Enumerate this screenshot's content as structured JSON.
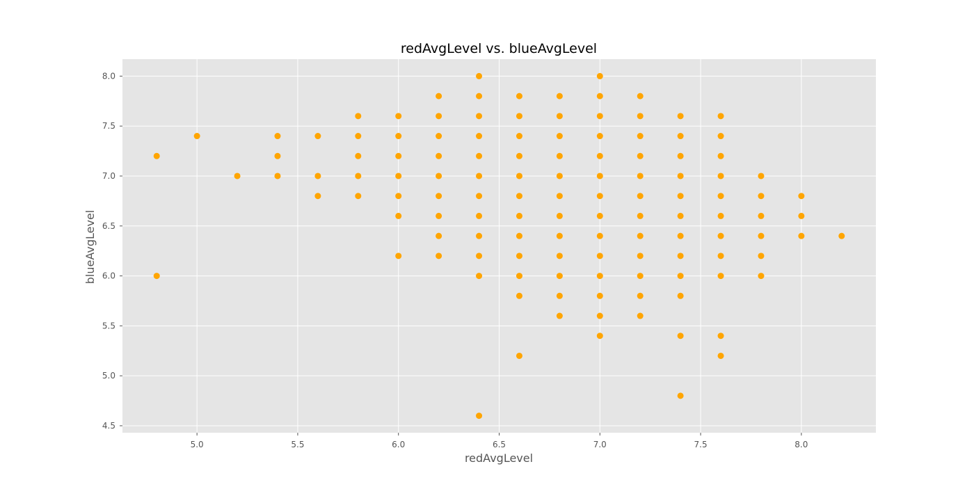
{
  "chart_data": {
    "type": "scatter",
    "title": "redAvgLevel vs. blueAvgLevel",
    "xlabel": "redAvgLevel",
    "ylabel": "blueAvgLevel",
    "xlim": [
      4.63,
      8.37
    ],
    "ylim": [
      4.43,
      8.17
    ],
    "xticks": [
      5.0,
      5.5,
      6.0,
      6.5,
      7.0,
      7.5,
      8.0
    ],
    "xtick_labels": [
      "5.0",
      "5.5",
      "6.0",
      "6.5",
      "7.0",
      "7.5",
      "8.0"
    ],
    "yticks": [
      4.5,
      5.0,
      5.5,
      6.0,
      6.5,
      7.0,
      7.5,
      8.0
    ],
    "ytick_labels": [
      "4.5",
      "5.0",
      "5.5",
      "6.0",
      "6.5",
      "7.0",
      "7.5",
      "8.0"
    ],
    "grid": true,
    "legend": false,
    "colors": {
      "marker": "#ffa500",
      "plot_background": "#e5e5e5",
      "grid": "#ffffff"
    },
    "points": [
      [
        4.8,
        7.2
      ],
      [
        4.8,
        6.0
      ],
      [
        5.0,
        7.4
      ],
      [
        5.2,
        7.0
      ],
      [
        5.4,
        7.4
      ],
      [
        5.4,
        7.2
      ],
      [
        5.4,
        7.0
      ],
      [
        5.6,
        7.4
      ],
      [
        5.6,
        7.0
      ],
      [
        5.6,
        6.8
      ],
      [
        5.8,
        7.6
      ],
      [
        5.8,
        7.4
      ],
      [
        5.8,
        7.2
      ],
      [
        5.8,
        7.0
      ],
      [
        5.8,
        6.8
      ],
      [
        6.0,
        7.6
      ],
      [
        6.0,
        7.4
      ],
      [
        6.0,
        7.2
      ],
      [
        6.0,
        7.0
      ],
      [
        6.0,
        6.8
      ],
      [
        6.0,
        6.6
      ],
      [
        6.0,
        6.2
      ],
      [
        6.2,
        7.8
      ],
      [
        6.2,
        7.6
      ],
      [
        6.2,
        7.4
      ],
      [
        6.2,
        7.2
      ],
      [
        6.2,
        7.0
      ],
      [
        6.2,
        6.8
      ],
      [
        6.2,
        6.6
      ],
      [
        6.2,
        6.4
      ],
      [
        6.2,
        6.2
      ],
      [
        6.4,
        8.0
      ],
      [
        6.4,
        7.8
      ],
      [
        6.4,
        7.6
      ],
      [
        6.4,
        7.4
      ],
      [
        6.4,
        7.2
      ],
      [
        6.4,
        7.0
      ],
      [
        6.4,
        6.8
      ],
      [
        6.4,
        6.6
      ],
      [
        6.4,
        6.4
      ],
      [
        6.4,
        6.2
      ],
      [
        6.4,
        6.0
      ],
      [
        6.4,
        4.6
      ],
      [
        6.6,
        7.8
      ],
      [
        6.6,
        7.6
      ],
      [
        6.6,
        7.4
      ],
      [
        6.6,
        7.2
      ],
      [
        6.6,
        7.0
      ],
      [
        6.6,
        6.8
      ],
      [
        6.6,
        6.6
      ],
      [
        6.6,
        6.4
      ],
      [
        6.6,
        6.2
      ],
      [
        6.6,
        6.0
      ],
      [
        6.6,
        5.8
      ],
      [
        6.6,
        5.2
      ],
      [
        6.8,
        7.8
      ],
      [
        6.8,
        7.6
      ],
      [
        6.8,
        7.4
      ],
      [
        6.8,
        7.2
      ],
      [
        6.8,
        7.0
      ],
      [
        6.8,
        6.8
      ],
      [
        6.8,
        6.6
      ],
      [
        6.8,
        6.4
      ],
      [
        6.8,
        6.2
      ],
      [
        6.8,
        6.0
      ],
      [
        6.8,
        5.8
      ],
      [
        6.8,
        5.6
      ],
      [
        7.0,
        8.0
      ],
      [
        7.0,
        7.8
      ],
      [
        7.0,
        7.6
      ],
      [
        7.0,
        7.4
      ],
      [
        7.0,
        7.2
      ],
      [
        7.0,
        7.0
      ],
      [
        7.0,
        6.8
      ],
      [
        7.0,
        6.6
      ],
      [
        7.0,
        6.4
      ],
      [
        7.0,
        6.2
      ],
      [
        7.0,
        6.0
      ],
      [
        7.0,
        5.8
      ],
      [
        7.0,
        5.6
      ],
      [
        7.0,
        5.4
      ],
      [
        7.2,
        7.8
      ],
      [
        7.2,
        7.6
      ],
      [
        7.2,
        7.4
      ],
      [
        7.2,
        7.2
      ],
      [
        7.2,
        7.0
      ],
      [
        7.2,
        6.8
      ],
      [
        7.2,
        6.6
      ],
      [
        7.2,
        6.4
      ],
      [
        7.2,
        6.2
      ],
      [
        7.2,
        6.0
      ],
      [
        7.2,
        5.8
      ],
      [
        7.2,
        5.6
      ],
      [
        7.4,
        7.6
      ],
      [
        7.4,
        7.4
      ],
      [
        7.4,
        7.2
      ],
      [
        7.4,
        7.0
      ],
      [
        7.4,
        6.8
      ],
      [
        7.4,
        6.6
      ],
      [
        7.4,
        6.4
      ],
      [
        7.4,
        6.2
      ],
      [
        7.4,
        6.0
      ],
      [
        7.4,
        5.8
      ],
      [
        7.4,
        5.4
      ],
      [
        7.4,
        4.8
      ],
      [
        7.6,
        7.6
      ],
      [
        7.6,
        7.4
      ],
      [
        7.6,
        7.2
      ],
      [
        7.6,
        7.0
      ],
      [
        7.6,
        6.8
      ],
      [
        7.6,
        6.6
      ],
      [
        7.6,
        6.4
      ],
      [
        7.6,
        6.2
      ],
      [
        7.6,
        6.0
      ],
      [
        7.6,
        5.4
      ],
      [
        7.6,
        5.2
      ],
      [
        7.8,
        7.0
      ],
      [
        7.8,
        6.8
      ],
      [
        7.8,
        6.6
      ],
      [
        7.8,
        6.4
      ],
      [
        7.8,
        6.2
      ],
      [
        7.8,
        6.0
      ],
      [
        8.0,
        6.8
      ],
      [
        8.0,
        6.6
      ],
      [
        8.0,
        6.4
      ],
      [
        8.2,
        6.4
      ]
    ]
  }
}
